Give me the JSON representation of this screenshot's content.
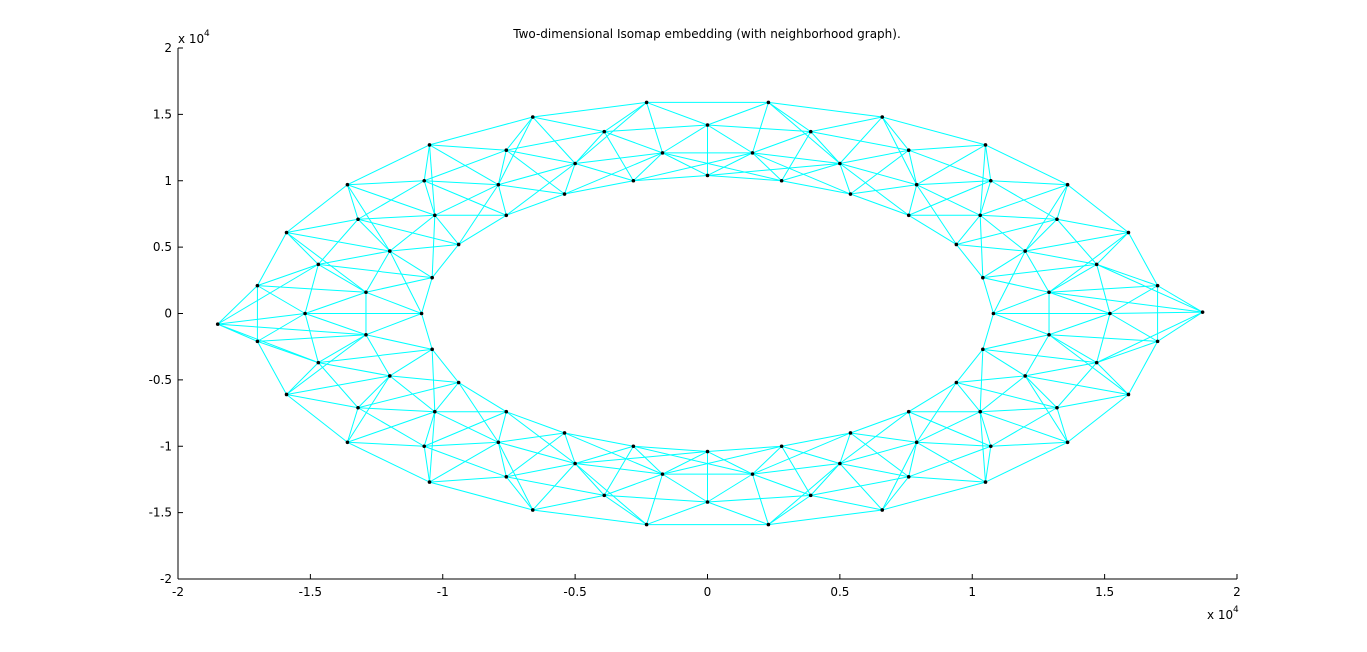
{
  "chart_data": {
    "type": "network-scatter",
    "title": "Two-dimensional Isomap embedding (with neighborhood graph).",
    "x_multiplier": {
      "base": "x 10",
      "power": "4"
    },
    "y_multiplier": {
      "base": "x 10",
      "power": "4"
    },
    "xlim": [
      -2,
      2
    ],
    "ylim": [
      -2,
      2
    ],
    "xticks": [
      -2,
      -1.5,
      -1,
      -0.5,
      0,
      0.5,
      1,
      1.5,
      2
    ],
    "yticks": [
      -2,
      -1.5,
      -1,
      -0.5,
      0,
      0.5,
      1,
      1.5,
      2
    ],
    "color": "#000000",
    "edge_color": "#00ffff",
    "x": [
      1.08,
      1.04,
      0.94,
      0.76,
      0.54,
      0.28,
      0,
      -0.28,
      -0.54,
      -0.76,
      -0.94,
      -1.04,
      -1.08,
      -1.04,
      -0.94,
      -0.76,
      -0.54,
      -0.28,
      0,
      0.28,
      0.54,
      0.76,
      0.94,
      1.04,
      1.29,
      1.2,
      1.03,
      0.79,
      0.5,
      0.17,
      -0.17,
      -0.5,
      -0.79,
      -1.03,
      -1.2,
      -1.29,
      -1.29,
      -1.2,
      -1.03,
      -0.79,
      -0.5,
      -0.17,
      0.17,
      0.5,
      0.79,
      1.03,
      1.2,
      1.29,
      1.52,
      1.47,
      1.32,
      1.07,
      0.76,
      0.39,
      0,
      -0.39,
      -0.76,
      -1.07,
      -1.32,
      -1.47,
      -1.52,
      -1.47,
      -1.32,
      -1.07,
      -0.76,
      -0.39,
      0,
      0.39,
      0.76,
      1.07,
      1.32,
      1.47,
      1.7,
      1.59,
      1.36,
      1.05,
      0.66,
      0.23,
      -0.23,
      -0.66,
      -1.05,
      -1.36,
      -1.59,
      -1.7,
      -1.7,
      -1.59,
      -1.36,
      -1.05,
      -0.66,
      -0.23,
      0.23,
      0.66,
      1.05,
      1.36,
      1.59,
      1.7,
      1.87,
      -1.85
    ],
    "y": [
      0,
      0.27,
      0.52,
      0.74,
      0.9,
      1.0,
      1.04,
      1.0,
      0.9,
      0.74,
      0.52,
      0.27,
      0,
      -0.27,
      -0.52,
      -0.74,
      -0.9,
      -1.0,
      -1.04,
      -1.0,
      -0.9,
      -0.74,
      -0.52,
      -0.27,
      0.16,
      0.47,
      0.74,
      0.97,
      1.13,
      1.21,
      1.21,
      1.13,
      0.97,
      0.74,
      0.47,
      0.16,
      -0.16,
      -0.47,
      -0.74,
      -0.97,
      -1.13,
      -1.21,
      -1.21,
      -1.13,
      -0.97,
      -0.74,
      -0.47,
      -0.16,
      0,
      0.37,
      0.71,
      1.0,
      1.23,
      1.37,
      1.42,
      1.37,
      1.23,
      1.0,
      0.71,
      0.37,
      0,
      -0.37,
      -0.71,
      -1.0,
      -1.23,
      -1.37,
      -1.42,
      -1.37,
      -1.23,
      -1.0,
      -0.71,
      -0.37,
      0.21,
      0.61,
      0.97,
      1.27,
      1.48,
      1.59,
      1.59,
      1.48,
      1.27,
      0.97,
      0.61,
      0.21,
      -0.21,
      -0.61,
      -0.97,
      -1.27,
      -1.48,
      -1.59,
      -1.59,
      -1.48,
      -1.27,
      -0.97,
      -0.61,
      -0.21,
      0.01,
      -0.08
    ]
  }
}
